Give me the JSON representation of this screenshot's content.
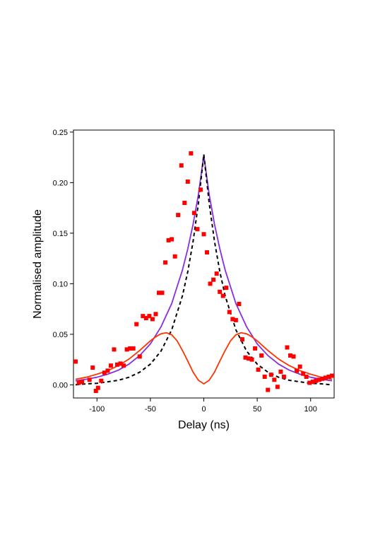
{
  "chart_data": {
    "type": "scatter",
    "xlabel": "Delay (ns)",
    "ylabel": "Normalised amplitude",
    "xlim": [
      -122,
      122
    ],
    "ylim": [
      -0.013,
      0.252
    ],
    "xticks": [
      -100,
      -50,
      0,
      50,
      100
    ],
    "xtick_labels": [
      "-100",
      "-50",
      "0",
      "50",
      "100"
    ],
    "yticks": [
      0.0,
      0.05,
      0.1,
      0.15,
      0.2,
      0.25
    ],
    "ytick_labels": [
      "0.00",
      "0.05",
      "0.10",
      "0.15",
      "0.20",
      "0.25"
    ],
    "grid": false,
    "legend": "none",
    "points": {
      "color": "#ff0000",
      "x": [
        -120,
        -117,
        -114,
        -107,
        -104,
        -101,
        -99,
        -96,
        -93,
        -90,
        -87,
        -84,
        -81,
        -78,
        -75,
        -72,
        -69,
        -66,
        -63,
        -60,
        -57,
        -54,
        -51,
        -48,
        -45,
        -42,
        -39,
        -36,
        -33,
        -30,
        -27,
        -24,
        -21,
        -18,
        -15,
        -12,
        -9,
        -6,
        -3,
        0,
        3,
        6,
        9,
        12,
        15,
        18,
        21,
        24,
        27,
        30,
        33,
        36,
        39,
        42,
        45,
        48,
        51,
        54,
        57,
        60,
        63,
        66,
        69,
        72,
        75,
        78,
        81,
        84,
        87,
        90,
        93,
        96,
        99,
        102,
        105,
        108,
        111,
        114,
        117,
        120
      ],
      "y": [
        0.023,
        0.002,
        0.003,
        0.005,
        0.017,
        -0.006,
        -0.003,
        0.004,
        0.012,
        0.014,
        0.019,
        0.035,
        0.02,
        0.021,
        0.019,
        0.035,
        0.036,
        0.036,
        0.06,
        0.028,
        0.068,
        0.066,
        0.068,
        0.065,
        0.07,
        0.091,
        0.091,
        0.121,
        0.143,
        0.144,
        0.127,
        0.168,
        0.217,
        0.18,
        0.201,
        0.229,
        0.17,
        0.154,
        0.193,
        0.149,
        0.131,
        0.1,
        0.104,
        0.11,
        0.092,
        0.088,
        0.096,
        0.072,
        0.065,
        0.064,
        0.08,
        0.045,
        0.027,
        0.026,
        0.025,
        0.036,
        0.015,
        0.029,
        0.008,
        -0.005,
        0.01,
        0.005,
        -0.002,
        0.013,
        0.008,
        0.037,
        0.029,
        0.028,
        0.014,
        0.018,
        0.011,
        0.008,
        0.002,
        0.003,
        0.004,
        0.005,
        0.006,
        0.007,
        0.008,
        0.009
      ]
    },
    "series": [
      {
        "style": "solid",
        "color": "#8a2be2",
        "x": [
          -120,
          -110,
          -100,
          -90,
          -80,
          -70,
          -60,
          -50,
          -40,
          -30,
          -20,
          -15,
          -10,
          -5,
          0,
          5,
          10,
          15,
          20,
          30,
          40,
          50,
          60,
          70,
          80,
          90,
          100,
          110,
          120
        ],
        "y": [
          0.004,
          0.0055,
          0.0075,
          0.0105,
          0.0145,
          0.0205,
          0.029,
          0.0405,
          0.0575,
          0.0805,
          0.1135,
          0.1345,
          0.159,
          0.1885,
          0.227,
          0.1885,
          0.159,
          0.1345,
          0.1135,
          0.0805,
          0.0575,
          0.0405,
          0.029,
          0.0205,
          0.0145,
          0.0105,
          0.0075,
          0.0055,
          0.004
        ]
      },
      {
        "style": "dashed",
        "color": "#000000",
        "x": [
          -120,
          -110,
          -100,
          -90,
          -80,
          -70,
          -60,
          -50,
          -40,
          -30,
          -20,
          -15,
          -10,
          -5,
          0,
          5,
          10,
          15,
          20,
          30,
          40,
          50,
          60,
          70,
          80,
          90,
          100,
          110,
          120
        ],
        "y": [
          0.0,
          0.001,
          0.0015,
          0.003,
          0.0045,
          0.0075,
          0.0125,
          0.0205,
          0.0335,
          0.0545,
          0.088,
          0.112,
          0.142,
          0.18,
          0.228,
          0.18,
          0.142,
          0.112,
          0.088,
          0.0545,
          0.0335,
          0.0205,
          0.0125,
          0.0075,
          0.0045,
          0.003,
          0.0015,
          0.001,
          0.0
        ]
      },
      {
        "style": "solid",
        "color": "#ff3300",
        "x": [
          -120,
          -110,
          -100,
          -90,
          -80,
          -70,
          -60,
          -50,
          -45,
          -40,
          -35,
          -30,
          -25,
          -20,
          -15,
          -10,
          -5,
          0,
          5,
          10,
          15,
          20,
          25,
          30,
          35,
          40,
          45,
          50,
          60,
          70,
          80,
          90,
          100,
          110,
          120
        ],
        "y": [
          0.0055,
          0.0075,
          0.0105,
          0.014,
          0.019,
          0.0255,
          0.034,
          0.0435,
          0.0475,
          0.0505,
          0.0515,
          0.0495,
          0.0435,
          0.034,
          0.0235,
          0.0125,
          0.0045,
          0.001,
          0.0045,
          0.0125,
          0.0235,
          0.034,
          0.0435,
          0.0495,
          0.0515,
          0.0505,
          0.0475,
          0.0435,
          0.034,
          0.0255,
          0.019,
          0.014,
          0.0105,
          0.0075,
          0.0055
        ]
      }
    ]
  }
}
